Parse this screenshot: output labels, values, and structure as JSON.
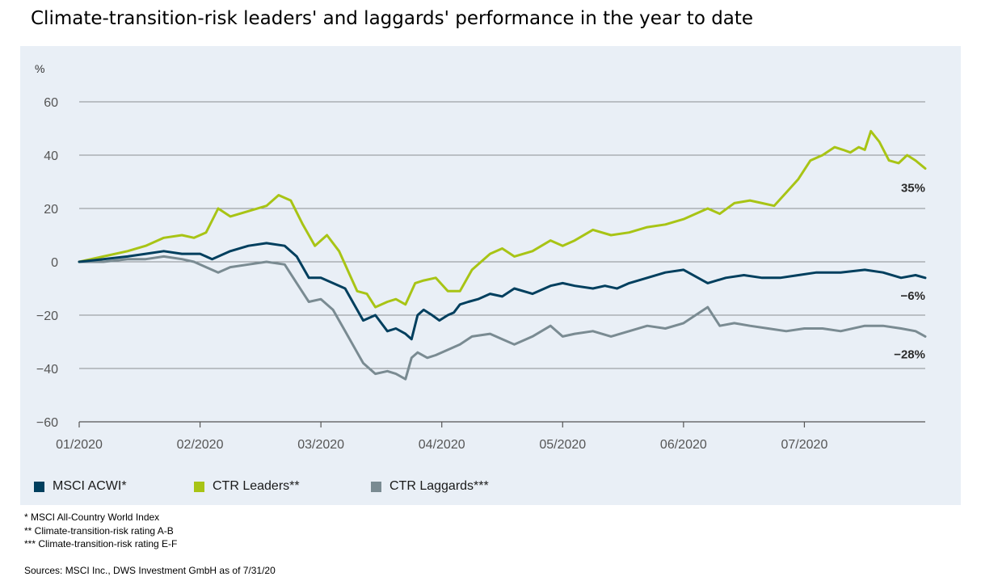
{
  "title": "Climate-transition-risk leaders' and laggards' performance in the year to date",
  "chart_data": {
    "type": "line",
    "ylabel": "%",
    "ylim": [
      -60,
      60
    ],
    "yticks": [
      60,
      40,
      20,
      0,
      -20,
      -40,
      -60
    ],
    "ytick_labels": [
      "60",
      "40",
      "20",
      "0",
      "−20",
      "−40",
      "−60"
    ],
    "x_tick_labels": [
      "01/2020",
      "02/2020",
      "03/2020",
      "04/2020",
      "05/2020",
      "06/2020",
      "07/2020"
    ],
    "xlim": [
      0,
      7
    ],
    "grid": true,
    "series": [
      {
        "name": "MSCI ACWI*",
        "color": "#003f5e",
        "end_label": "−6%",
        "x": [
          0,
          0.2,
          0.4,
          0.55,
          0.7,
          0.85,
          1.0,
          1.1,
          1.25,
          1.4,
          1.55,
          1.7,
          1.8,
          1.9,
          2.0,
          2.1,
          2.2,
          2.3,
          2.35,
          2.45,
          2.55,
          2.62,
          2.7,
          2.75,
          2.8,
          2.85,
          2.92,
          2.98,
          3.05,
          3.1,
          3.15,
          3.22,
          3.3,
          3.4,
          3.5,
          3.6,
          3.75,
          3.9,
          4.0,
          4.1,
          4.25,
          4.35,
          4.45,
          4.55,
          4.7,
          4.85,
          5.0,
          5.2,
          5.35,
          5.5,
          5.65,
          5.8,
          5.95,
          6.1,
          6.3,
          6.5,
          6.65,
          6.8,
          6.92,
          7.0
        ],
        "y": [
          0,
          1,
          2,
          3,
          4,
          3,
          3,
          1,
          4,
          6,
          7,
          6,
          2,
          -6,
          -6,
          -8,
          -10,
          -18,
          -22,
          -20,
          -26,
          -25,
          -27,
          -29,
          -20,
          -18,
          -20,
          -22,
          -20,
          -19,
          -16,
          -15,
          -14,
          -12,
          -13,
          -10,
          -12,
          -9,
          -8,
          -9,
          -10,
          -9,
          -10,
          -8,
          -6,
          -4,
          -3,
          -8,
          -6,
          -5,
          -6,
          -6,
          -5,
          -4,
          -4,
          -3,
          -4,
          -6,
          -5,
          -6
        ]
      },
      {
        "name": "CTR Leaders**",
        "color": "#a8c415",
        "end_label": "35%",
        "x": [
          0,
          0.2,
          0.4,
          0.55,
          0.7,
          0.85,
          0.95,
          1.05,
          1.15,
          1.25,
          1.4,
          1.55,
          1.65,
          1.75,
          1.85,
          1.95,
          2.05,
          2.15,
          2.25,
          2.3,
          2.38,
          2.45,
          2.55,
          2.62,
          2.7,
          2.78,
          2.85,
          2.95,
          3.05,
          3.15,
          3.25,
          3.4,
          3.5,
          3.6,
          3.75,
          3.9,
          4.0,
          4.1,
          4.25,
          4.4,
          4.55,
          4.7,
          4.85,
          5.0,
          5.1,
          5.2,
          5.3,
          5.42,
          5.55,
          5.65,
          5.75,
          5.85,
          5.95,
          6.05,
          6.15,
          6.25,
          6.32,
          6.38,
          6.45,
          6.5,
          6.55,
          6.62,
          6.7,
          6.78,
          6.85,
          6.92,
          7.0
        ],
        "y": [
          0,
          2,
          4,
          6,
          9,
          10,
          9,
          11,
          20,
          17,
          19,
          21,
          25,
          23,
          14,
          6,
          10,
          4,
          -6,
          -11,
          -12,
          -17,
          -15,
          -14,
          -16,
          -8,
          -7,
          -6,
          -11,
          -11,
          -3,
          3,
          5,
          2,
          4,
          8,
          6,
          8,
          12,
          10,
          11,
          13,
          14,
          16,
          18,
          20,
          18,
          22,
          23,
          22,
          21,
          26,
          31,
          38,
          40,
          43,
          42,
          41,
          43,
          42,
          49,
          45,
          38,
          37,
          40,
          38,
          35
        ]
      },
      {
        "name": "CTR Laggards***",
        "color": "#7a8b92",
        "end_label": "−28%",
        "x": [
          0,
          0.2,
          0.4,
          0.55,
          0.7,
          0.85,
          0.95,
          1.05,
          1.15,
          1.25,
          1.4,
          1.55,
          1.7,
          1.8,
          1.9,
          2.0,
          2.1,
          2.2,
          2.3,
          2.35,
          2.45,
          2.55,
          2.62,
          2.7,
          2.75,
          2.8,
          2.88,
          2.95,
          3.05,
          3.15,
          3.25,
          3.4,
          3.5,
          3.6,
          3.75,
          3.9,
          4.0,
          4.1,
          4.25,
          4.4,
          4.55,
          4.7,
          4.85,
          5.0,
          5.1,
          5.2,
          5.3,
          5.42,
          5.55,
          5.7,
          5.85,
          6.0,
          6.15,
          6.3,
          6.5,
          6.65,
          6.8,
          6.92,
          7.0
        ],
        "y": [
          0,
          0,
          1,
          1,
          2,
          1,
          0,
          -2,
          -4,
          -2,
          -1,
          0,
          -1,
          -8,
          -15,
          -14,
          -18,
          -26,
          -34,
          -38,
          -42,
          -41,
          -42,
          -44,
          -36,
          -34,
          -36,
          -35,
          -33,
          -31,
          -28,
          -27,
          -29,
          -31,
          -28,
          -24,
          -28,
          -27,
          -26,
          -28,
          -26,
          -24,
          -25,
          -23,
          -20,
          -17,
          -24,
          -23,
          -24,
          -25,
          -26,
          -25,
          -25,
          -26,
          -24,
          -24,
          -25,
          -26,
          -28
        ]
      }
    ]
  },
  "footnotes": [
    "* MSCI All-Country World Index",
    "** Climate-transition-risk rating A-B",
    "*** Climate-transition-risk rating E-F"
  ],
  "sources": "Sources: MSCI Inc., DWS Investment GmbH as of 7/31/20"
}
